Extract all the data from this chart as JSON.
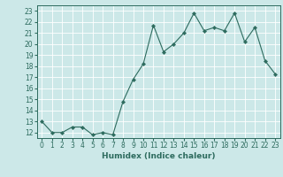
{
  "x": [
    0,
    1,
    2,
    3,
    4,
    5,
    6,
    7,
    8,
    9,
    10,
    11,
    12,
    13,
    14,
    15,
    16,
    17,
    18,
    19,
    20,
    21,
    22,
    23
  ],
  "y": [
    13,
    12,
    12,
    12.5,
    12.5,
    11.8,
    12,
    11.8,
    14.8,
    16.8,
    18.2,
    21.7,
    19.3,
    20,
    21,
    22.8,
    21.2,
    21.5,
    21.2,
    22.8,
    20.2,
    21.5,
    18.5,
    17.3
  ],
  "line_color": "#2d6b5e",
  "marker": "D",
  "bg_color": "#cce8e8",
  "grid_color": "#ffffff",
  "xlabel": "Humidex (Indice chaleur)",
  "xlim": [
    -0.5,
    23.5
  ],
  "ylim": [
    11.5,
    23.5
  ],
  "yticks": [
    12,
    13,
    14,
    15,
    16,
    17,
    18,
    19,
    20,
    21,
    22,
    23
  ],
  "xticks": [
    0,
    1,
    2,
    3,
    4,
    5,
    6,
    7,
    8,
    9,
    10,
    11,
    12,
    13,
    14,
    15,
    16,
    17,
    18,
    19,
    20,
    21,
    22,
    23
  ],
  "label_fontsize": 6.5,
  "tick_fontsize": 5.5
}
